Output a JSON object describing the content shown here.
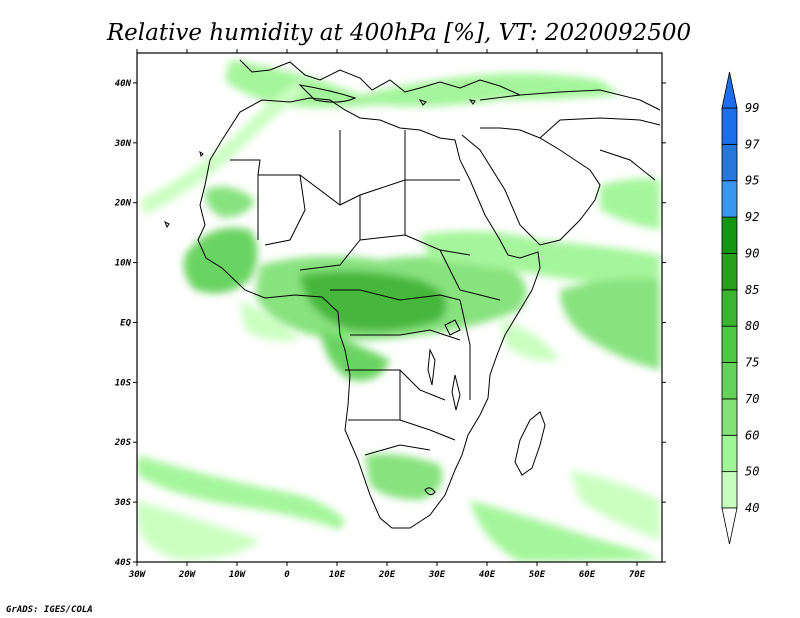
{
  "map": {
    "title": "Relative humidity at 400hPa [%], VT: 2020092500",
    "footer": "GrADS: IGES/COLA",
    "lon_ticks": [
      "30W",
      "20W",
      "10W",
      "0",
      "10E",
      "20E",
      "30E",
      "40E",
      "50E",
      "60E",
      "70E"
    ],
    "lat_ticks": [
      "40N",
      "30N",
      "20N",
      "10N",
      "EQ",
      "10S",
      "20S",
      "30S",
      "40S"
    ],
    "extent": {
      "lon": [
        -30,
        75
      ],
      "lat": [
        -40,
        45
      ]
    }
  },
  "legend": {
    "levels": [
      "40",
      "50",
      "60",
      "70",
      "75",
      "80",
      "85",
      "90",
      "92",
      "95",
      "97",
      "99"
    ],
    "colors": [
      "#e6ffe1",
      "#c8ffbe",
      "#a0f596",
      "#82e178",
      "#64d25a",
      "#50c846",
      "#3cb432",
      "#28a01e",
      "#149614",
      "#3c96f0",
      "#2878dc",
      "#1e6eeb"
    ],
    "extend": "both"
  }
}
